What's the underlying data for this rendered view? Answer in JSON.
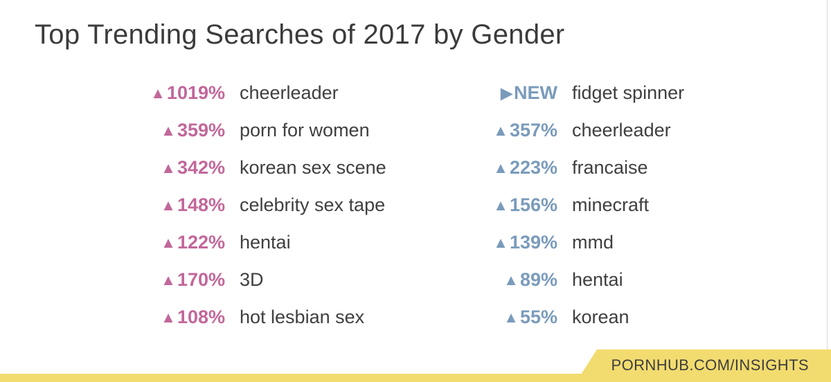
{
  "title": "Top Trending Searches of 2017 by Gender",
  "colors": {
    "women": "#c2679a",
    "men": "#7a9bbb",
    "banner": "#f2dc70",
    "text": "#3a3a3a"
  },
  "chart_data": {
    "type": "table",
    "title": "Top Trending Searches of 2017 by Gender",
    "columns": [
      {
        "color": "#c2679a",
        "rows": [
          {
            "marker": "▲",
            "change": "1019%",
            "term": "cheerleader"
          },
          {
            "marker": "▲",
            "change": "359%",
            "term": "porn for women"
          },
          {
            "marker": "▲",
            "change": "342%",
            "term": "korean sex scene"
          },
          {
            "marker": "▲",
            "change": "148%",
            "term": "celebrity sex tape"
          },
          {
            "marker": "▲",
            "change": "122%",
            "term": "hentai"
          },
          {
            "marker": "▲",
            "change": "170%",
            "term": "3D"
          },
          {
            "marker": "▲",
            "change": "108%",
            "term": "hot lesbian sex"
          }
        ]
      },
      {
        "color": "#7a9bbb",
        "rows": [
          {
            "marker": "▶",
            "change": "NEW",
            "term": "fidget spinner"
          },
          {
            "marker": "▲",
            "change": "357%",
            "term": "cheerleader"
          },
          {
            "marker": "▲",
            "change": "223%",
            "term": "francaise"
          },
          {
            "marker": "▲",
            "change": "156%",
            "term": "minecraft"
          },
          {
            "marker": "▲",
            "change": "139%",
            "term": "mmd"
          },
          {
            "marker": "▲",
            "change": "89%",
            "term": "hentai"
          },
          {
            "marker": "▲",
            "change": "55%",
            "term": "korean"
          }
        ]
      }
    ]
  },
  "footer": {
    "source": "PORNHUB.COM/INSIGHTS"
  }
}
